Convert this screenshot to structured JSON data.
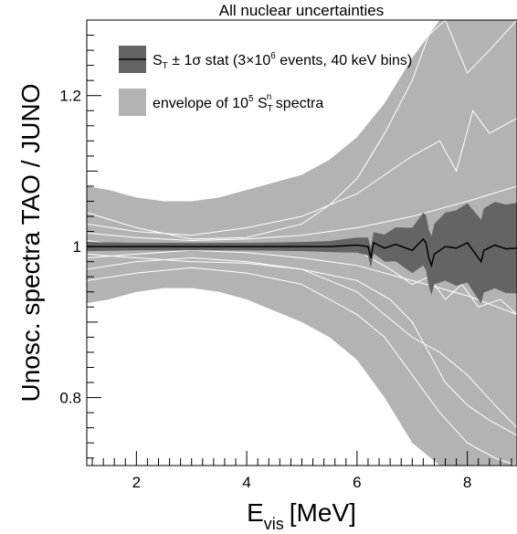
{
  "chart_data": {
    "type": "line",
    "title": "All nuclear uncertainties",
    "xlabel_main": "E",
    "xlabel_sub": "vis",
    "xlabel_unit": "[MeV]",
    "ylabel": "Unosc. spectra TAO / JUNO",
    "xlim": [
      1.1,
      8.9
    ],
    "ylim": [
      0.71,
      1.3
    ],
    "xticks": [
      2,
      4,
      6,
      8
    ],
    "xtick_labels": [
      "2",
      "4",
      "6",
      "8"
    ],
    "yticks": [
      0.8,
      1.0,
      1.2
    ],
    "ytick_labels": [
      "0.8",
      "1",
      "1.2"
    ],
    "grid": false,
    "legend_position": "top-left",
    "legend": [
      {
        "label_parts": {
          "s": "S",
          "sub": "T",
          "pm": " ± 1σ stat (3×10",
          "sup": "6",
          "tail": " events, 40 keV bins)"
        },
        "color": "#646464"
      },
      {
        "label_parts": {
          "pre": "envelope of 10",
          "sup": "5",
          "mid": " S",
          "sub": "T",
          "sup2": "n",
          "tail": " spectra"
        },
        "color": "#b3b3b3"
      }
    ],
    "colors": {
      "envelope": "#b3b3b3",
      "stat_band": "#646464",
      "central_line": "#000000",
      "sample_lines": "#ffffff"
    },
    "envelope": {
      "x": [
        1.1,
        1.5,
        2.0,
        2.5,
        3.0,
        3.5,
        4.0,
        4.5,
        5.0,
        5.5,
        6.0,
        6.5,
        7.0,
        7.5,
        8.0,
        8.5,
        8.9
      ],
      "upper": [
        1.08,
        1.075,
        1.065,
        1.06,
        1.06,
        1.065,
        1.075,
        1.085,
        1.095,
        1.115,
        1.145,
        1.19,
        1.25,
        1.3,
        1.3,
        1.3,
        1.3
      ],
      "lower": [
        0.925,
        0.93,
        0.94,
        0.945,
        0.945,
        0.94,
        0.93,
        0.915,
        0.9,
        0.88,
        0.85,
        0.8,
        0.74,
        0.71,
        0.71,
        0.71,
        0.71
      ]
    },
    "stat_band": {
      "x": [
        1.1,
        2.0,
        3.0,
        4.0,
        5.0,
        5.8,
        6.2,
        6.6,
        7.0,
        7.4,
        7.8,
        8.2,
        8.6,
        8.9
      ],
      "halfwidth": [
        0.006,
        0.005,
        0.005,
        0.005,
        0.006,
        0.008,
        0.012,
        0.02,
        0.03,
        0.04,
        0.05,
        0.055,
        0.058,
        0.06
      ]
    },
    "central": {
      "x": [
        1.1,
        1.5,
        2.0,
        2.5,
        3.0,
        3.5,
        4.0,
        4.5,
        5.0,
        5.5,
        6.0,
        6.2,
        6.25,
        6.3,
        6.5,
        6.7,
        7.0,
        7.2,
        7.25,
        7.3,
        7.35,
        7.4,
        7.6,
        7.8,
        8.0,
        8.2,
        8.25,
        8.3,
        8.5,
        8.7,
        8.9
      ],
      "y": [
        1.0,
        1.0,
        1.0,
        1.0,
        1.0,
        1.0,
        1.0,
        1.0,
        1.0,
        1.0,
        1.002,
        1.0,
        0.985,
        1.005,
        0.998,
        1.003,
        0.995,
        1.01,
        1.005,
        0.985,
        0.975,
        0.99,
        1.0,
        0.998,
        1.005,
        0.985,
        0.98,
        0.995,
        1.002,
        0.997,
        0.998
      ]
    },
    "series": [
      {
        "x": [
          1.1,
          2.0,
          3.0,
          4.0,
          5.0,
          5.5,
          6.0,
          6.5,
          7.0,
          7.3,
          7.6,
          8.0,
          8.4,
          8.9
        ],
        "y": [
          1.045,
          1.025,
          1.01,
          1.012,
          1.03,
          1.055,
          1.09,
          1.15,
          1.22,
          1.28,
          1.3,
          1.23,
          1.26,
          1.3
        ]
      },
      {
        "x": [
          1.1,
          2.0,
          3.0,
          4.0,
          5.0,
          6.0,
          7.0,
          7.5,
          7.8,
          8.1,
          8.4,
          8.9
        ],
        "y": [
          1.03,
          1.02,
          1.015,
          1.025,
          1.04,
          1.07,
          1.12,
          1.14,
          1.1,
          1.18,
          1.15,
          1.17
        ]
      },
      {
        "x": [
          1.1,
          2.0,
          3.0,
          4.0,
          5.0,
          6.0,
          7.0,
          8.0,
          8.9
        ],
        "y": [
          1.018,
          1.012,
          1.008,
          1.01,
          1.015,
          1.025,
          1.04,
          1.06,
          1.08
        ]
      },
      {
        "x": [
          1.1,
          2.0,
          3.0,
          4.0,
          5.0,
          6.0,
          7.0,
          8.0,
          8.9
        ],
        "y": [
          0.985,
          0.99,
          0.995,
          0.992,
          0.985,
          0.975,
          0.955,
          0.935,
          0.91
        ]
      },
      {
        "x": [
          1.1,
          2.0,
          3.0,
          4.0,
          5.0,
          6.0,
          6.5,
          7.0,
          7.5,
          8.0,
          8.5,
          8.9
        ],
        "y": [
          0.97,
          0.98,
          0.985,
          0.98,
          0.97,
          0.94,
          0.91,
          0.88,
          0.86,
          0.83,
          0.79,
          0.76
        ]
      },
      {
        "x": [
          1.1,
          2.0,
          3.0,
          4.0,
          5.0,
          6.0,
          6.5,
          6.8,
          7.2,
          7.5,
          8.0,
          8.5,
          8.9
        ],
        "y": [
          0.955,
          0.965,
          0.972,
          0.965,
          0.95,
          0.91,
          0.88,
          0.85,
          0.81,
          0.78,
          0.74,
          0.72,
          0.71
        ]
      },
      {
        "x": [
          1.1,
          2.0,
          3.0,
          4.0,
          5.0,
          6.0,
          6.6,
          7.0,
          7.3,
          7.6,
          8.0,
          8.4,
          8.9
        ],
        "y": [
          0.99,
          0.985,
          0.98,
          0.978,
          0.97,
          0.955,
          0.93,
          0.9,
          0.86,
          0.82,
          0.79,
          0.77,
          0.75
        ]
      },
      {
        "x": [
          1.1,
          2.0,
          3.0,
          4.0,
          5.0,
          6.0,
          6.6,
          7.0,
          7.3,
          7.6,
          7.9,
          8.2,
          8.6,
          8.9
        ],
        "y": [
          1.008,
          1.0,
          0.995,
          0.998,
          1.005,
          0.995,
          0.97,
          0.95,
          0.96,
          0.93,
          0.95,
          0.92,
          0.93,
          0.91
        ]
      }
    ]
  }
}
